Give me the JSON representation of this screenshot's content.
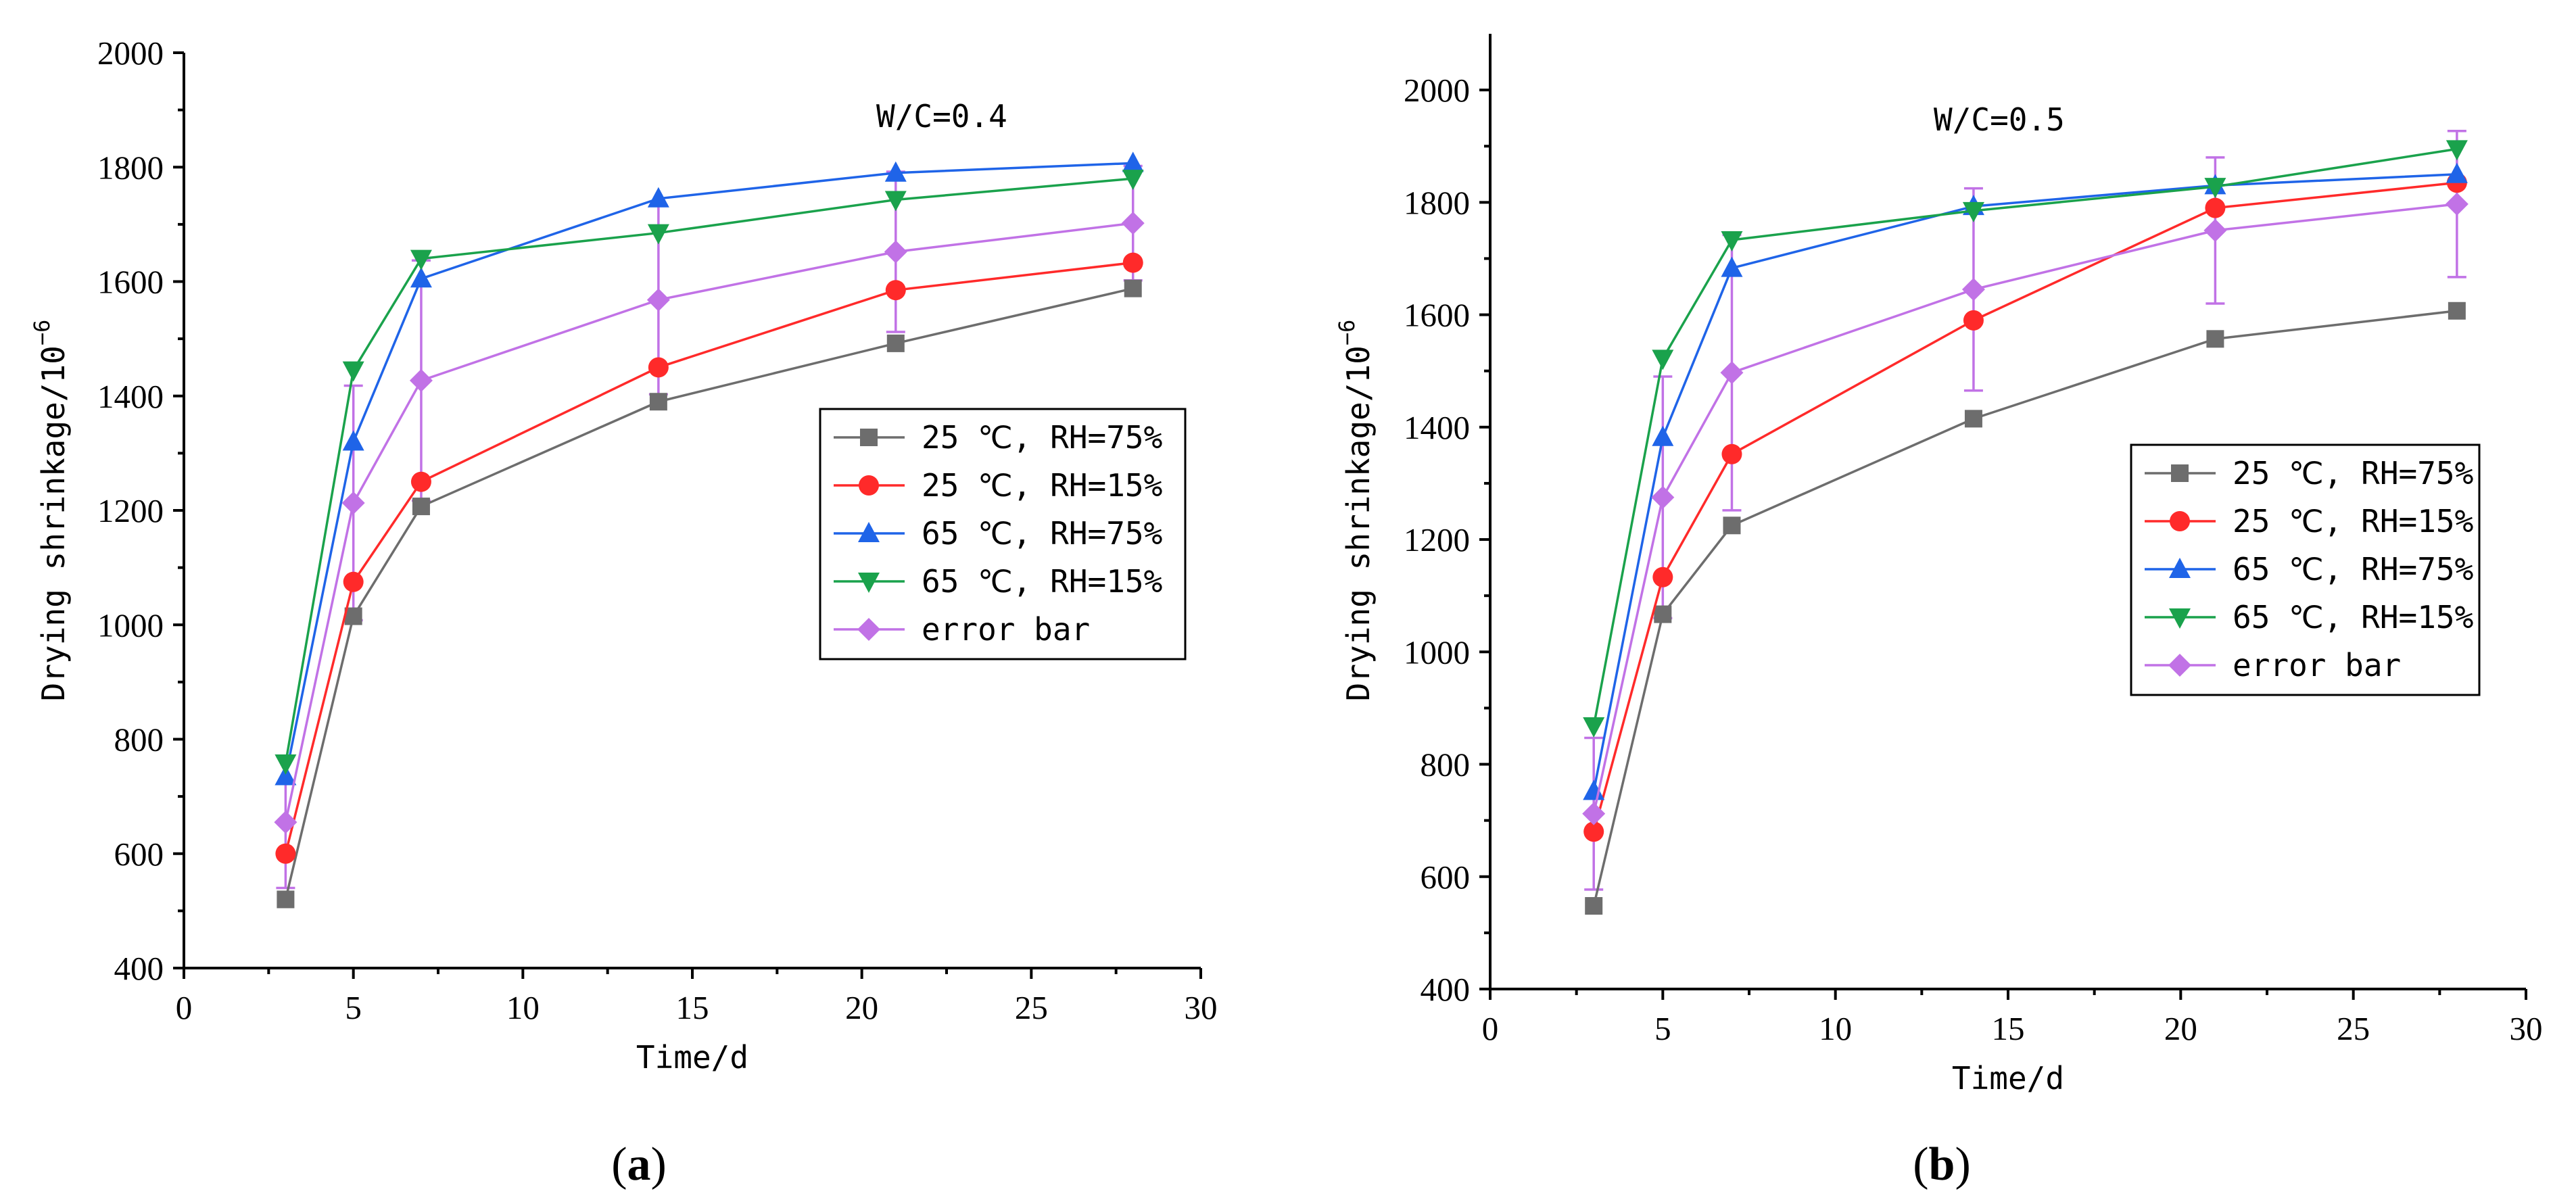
{
  "chart_data": [
    {
      "type": "line",
      "panel_label": "a",
      "annotation": "W/C=0.4",
      "xlabel": "Time/d",
      "ylabel_main": "Drying shrinkage/10",
      "ylabel_sup": "−6",
      "xlim": [
        0,
        30
      ],
      "ylim": [
        400,
        2000
      ],
      "xticks": [
        0,
        5,
        10,
        15,
        20,
        25,
        30
      ],
      "yticks": [
        400,
        600,
        800,
        1000,
        1200,
        1400,
        1600,
        1800,
        2000
      ],
      "legend_position": "center-right",
      "x": [
        3,
        5,
        7,
        14,
        21,
        28
      ],
      "series": [
        {
          "name": "25 ℃, RH=75%",
          "color": "#6d6d6d",
          "marker": "square",
          "values": [
            520,
            1015,
            1207,
            1390,
            1492,
            1588
          ]
        },
        {
          "name": "25 ℃, RH=15%",
          "color": "#ff2a2a",
          "marker": "circle",
          "values": [
            600,
            1075,
            1250,
            1450,
            1585,
            1633
          ]
        },
        {
          "name": "65 ℃, RH=75%",
          "color": "#1f64e8",
          "marker": "triangle-up",
          "values": [
            735,
            1320,
            1605,
            1745,
            1790,
            1807
          ]
        },
        {
          "name": "65 ℃, RH=15%",
          "color": "#1aa24c",
          "marker": "triangle-down",
          "values": [
            758,
            1445,
            1640,
            1685,
            1743,
            1780
          ]
        },
        {
          "name": "error bar",
          "color": "#c172e6",
          "marker": "diamond",
          "values": [
            655,
            1213,
            1427,
            1568,
            1652,
            1702
          ],
          "error": [
            115,
            205,
            210,
            165,
            140,
            100
          ]
        }
      ]
    },
    {
      "type": "line",
      "panel_label": "b",
      "annotation": "W/C=0.5",
      "xlabel": "Time/d",
      "ylabel_main": "Drying shrinkage/10",
      "ylabel_sup": "−6",
      "xlim": [
        0,
        30
      ],
      "ylim": [
        400,
        2100
      ],
      "xticks": [
        0,
        5,
        10,
        15,
        20,
        25,
        30
      ],
      "yticks": [
        400,
        600,
        800,
        1000,
        1200,
        1400,
        1600,
        1800,
        2000
      ],
      "legend_position": "center-right",
      "x": [
        3,
        5,
        7,
        14,
        21,
        28
      ],
      "series": [
        {
          "name": "25 ℃, RH=75%",
          "color": "#6d6d6d",
          "marker": "square",
          "values": [
            548,
            1067,
            1225,
            1415,
            1557,
            1607
          ]
        },
        {
          "name": "25 ℃, RH=15%",
          "color": "#ff2a2a",
          "marker": "circle",
          "values": [
            680,
            1133,
            1352,
            1590,
            1790,
            1835
          ]
        },
        {
          "name": "65 ℃, RH=75%",
          "color": "#1f64e8",
          "marker": "triangle-up",
          "values": [
            752,
            1382,
            1683,
            1793,
            1830,
            1850
          ]
        },
        {
          "name": "65 ℃, RH=15%",
          "color": "#1aa24c",
          "marker": "triangle-down",
          "values": [
            868,
            1522,
            1733,
            1785,
            1828,
            1895
          ]
        },
        {
          "name": "error bar",
          "color": "#c172e6",
          "marker": "diamond",
          "values": [
            712,
            1275,
            1497,
            1645,
            1750,
            1797
          ],
          "error": [
            135,
            215,
            245,
            180,
            130,
            130
          ]
        }
      ]
    }
  ]
}
